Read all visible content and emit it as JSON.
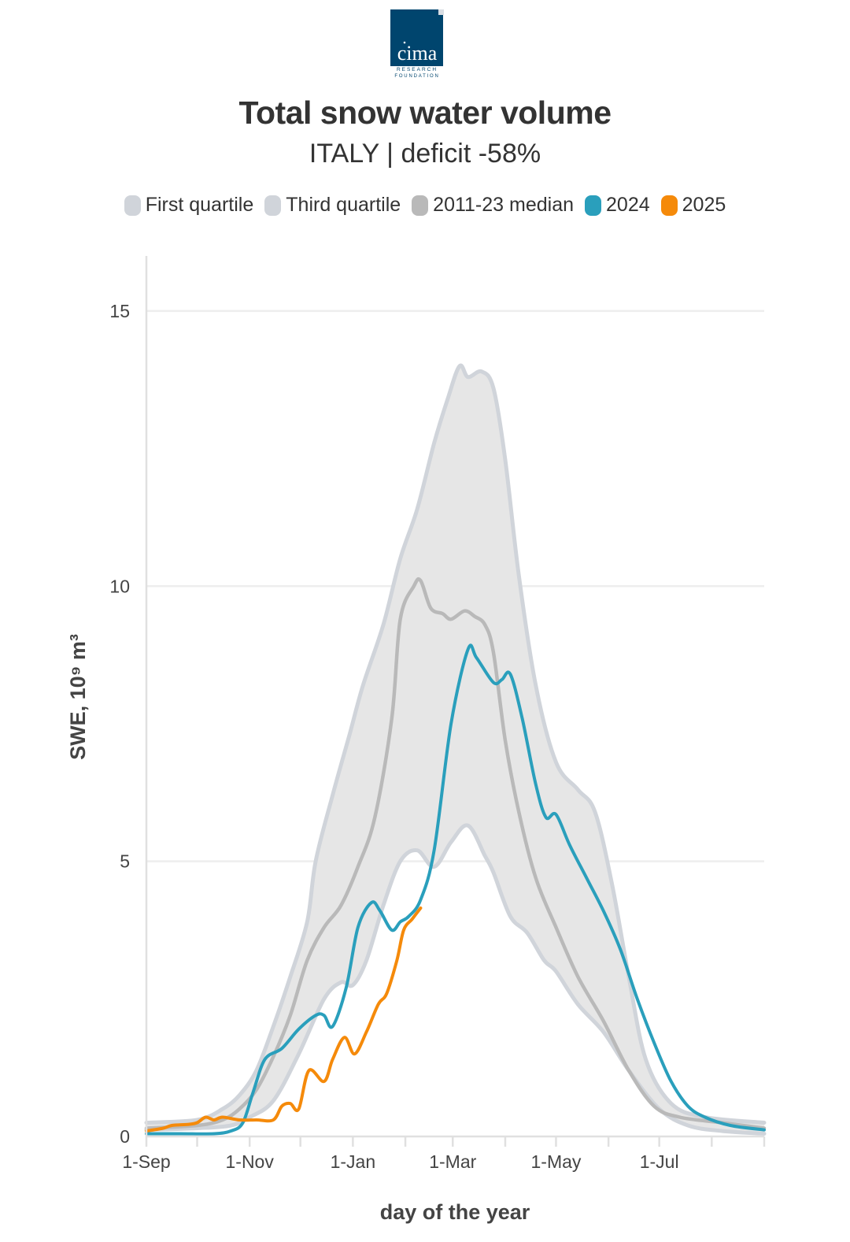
{
  "logo": {
    "name": "cima",
    "line1": "RESEARCH",
    "line2": "FOUNDATION",
    "bg_color": "#00456e"
  },
  "header": {
    "title": "Total snow water volume",
    "subtitle": "ITALY | deficit -58%"
  },
  "colors": {
    "quartile_fill": "#e6e6e6",
    "quartile_line": "#d0d4da",
    "median": "#b9b9b9",
    "y2024": "#2a9fbc",
    "y2025": "#f58a0a",
    "grid": "#eeeeee",
    "axis": "#e0e0e0"
  },
  "legend": [
    {
      "label": "First quartile",
      "color": "#d0d4da"
    },
    {
      "label": "Third quartile",
      "color": "#d0d4da"
    },
    {
      "label": "2011-23 median",
      "color": "#b9b9b9"
    },
    {
      "label": "2024",
      "color": "#2a9fbc"
    },
    {
      "label": "2025",
      "color": "#f58a0a"
    }
  ],
  "chart_data": {
    "type": "line",
    "title": "Total snow water volume",
    "subtitle": "ITALY | deficit -58%",
    "xlabel": "day of the year",
    "ylabel": "SWE, 10⁹ m³",
    "xlim": [
      0,
      365
    ],
    "ylim": [
      0,
      16
    ],
    "x_ticks": [
      {
        "day": 0,
        "label": "1-Sep"
      },
      {
        "day": 61,
        "label": "1-Nov"
      },
      {
        "day": 122,
        "label": "1-Jan"
      },
      {
        "day": 181,
        "label": "1-Mar"
      },
      {
        "day": 242,
        "label": "1-May"
      },
      {
        "day": 303,
        "label": "1-Jul"
      }
    ],
    "x_minor_ticks": [
      0,
      30,
      61,
      91,
      122,
      153,
      181,
      212,
      242,
      273,
      303,
      334,
      365
    ],
    "y_ticks": [
      0,
      5,
      10,
      15
    ],
    "legend_position": "top",
    "grid": true,
    "series": [
      {
        "name": "First quartile",
        "points": [
          [
            0,
            0.12
          ],
          [
            30,
            0.15
          ],
          [
            50,
            0.2
          ],
          [
            61,
            0.35
          ],
          [
            75,
            0.65
          ],
          [
            90,
            1.5
          ],
          [
            105,
            2.5
          ],
          [
            115,
            2.8
          ],
          [
            122,
            2.75
          ],
          [
            130,
            3.2
          ],
          [
            140,
            4.2
          ],
          [
            150,
            5.0
          ],
          [
            160,
            5.2
          ],
          [
            170,
            4.9
          ],
          [
            180,
            5.35
          ],
          [
            190,
            5.65
          ],
          [
            200,
            5.1
          ],
          [
            205,
            4.8
          ],
          [
            215,
            4.0
          ],
          [
            225,
            3.7
          ],
          [
            235,
            3.2
          ],
          [
            242,
            3.0
          ],
          [
            255,
            2.4
          ],
          [
            270,
            1.9
          ],
          [
            285,
            1.2
          ],
          [
            303,
            0.5
          ],
          [
            320,
            0.2
          ],
          [
            340,
            0.1
          ],
          [
            365,
            0.05
          ]
        ]
      },
      {
        "name": "Third quartile",
        "points": [
          [
            0,
            0.25
          ],
          [
            30,
            0.3
          ],
          [
            45,
            0.5
          ],
          [
            55,
            0.75
          ],
          [
            65,
            1.2
          ],
          [
            75,
            2.0
          ],
          [
            85,
            2.9
          ],
          [
            95,
            3.9
          ],
          [
            100,
            5.0
          ],
          [
            110,
            6.2
          ],
          [
            120,
            7.3
          ],
          [
            128,
            8.2
          ],
          [
            140,
            9.3
          ],
          [
            150,
            10.5
          ],
          [
            160,
            11.4
          ],
          [
            170,
            12.6
          ],
          [
            178,
            13.4
          ],
          [
            185,
            14.0
          ],
          [
            190,
            13.8
          ],
          [
            198,
            13.9
          ],
          [
            205,
            13.6
          ],
          [
            212,
            12.3
          ],
          [
            220,
            10.2
          ],
          [
            230,
            8.2
          ],
          [
            242,
            6.8
          ],
          [
            255,
            6.3
          ],
          [
            265,
            5.9
          ],
          [
            275,
            4.6
          ],
          [
            285,
            2.9
          ],
          [
            295,
            1.4
          ],
          [
            310,
            0.6
          ],
          [
            330,
            0.35
          ],
          [
            365,
            0.25
          ]
        ]
      },
      {
        "name": "2011-23 median",
        "points": [
          [
            0,
            0.15
          ],
          [
            30,
            0.2
          ],
          [
            45,
            0.3
          ],
          [
            55,
            0.5
          ],
          [
            65,
            0.85
          ],
          [
            75,
            1.45
          ],
          [
            85,
            2.2
          ],
          [
            95,
            3.2
          ],
          [
            105,
            3.8
          ],
          [
            115,
            4.2
          ],
          [
            125,
            4.9
          ],
          [
            135,
            5.8
          ],
          [
            145,
            7.6
          ],
          [
            150,
            9.4
          ],
          [
            158,
            10.0
          ],
          [
            162,
            10.1
          ],
          [
            168,
            9.6
          ],
          [
            175,
            9.5
          ],
          [
            180,
            9.4
          ],
          [
            188,
            9.55
          ],
          [
            194,
            9.45
          ],
          [
            200,
            9.3
          ],
          [
            205,
            8.8
          ],
          [
            212,
            7.2
          ],
          [
            220,
            5.9
          ],
          [
            230,
            4.7
          ],
          [
            242,
            3.8
          ],
          [
            255,
            2.9
          ],
          [
            270,
            2.1
          ],
          [
            285,
            1.2
          ],
          [
            300,
            0.55
          ],
          [
            315,
            0.35
          ],
          [
            340,
            0.25
          ],
          [
            365,
            0.15
          ]
        ]
      },
      {
        "name": "2024",
        "points": [
          [
            0,
            0.05
          ],
          [
            20,
            0.05
          ],
          [
            40,
            0.05
          ],
          [
            50,
            0.1
          ],
          [
            57,
            0.25
          ],
          [
            63,
            0.8
          ],
          [
            70,
            1.4
          ],
          [
            80,
            1.6
          ],
          [
            90,
            1.95
          ],
          [
            100,
            2.2
          ],
          [
            105,
            2.2
          ],
          [
            110,
            2.0
          ],
          [
            118,
            2.7
          ],
          [
            125,
            3.8
          ],
          [
            133,
            4.25
          ],
          [
            138,
            4.1
          ],
          [
            145,
            3.75
          ],
          [
            150,
            3.9
          ],
          [
            155,
            4.0
          ],
          [
            162,
            4.3
          ],
          [
            170,
            5.2
          ],
          [
            180,
            7.5
          ],
          [
            190,
            8.85
          ],
          [
            195,
            8.7
          ],
          [
            205,
            8.25
          ],
          [
            210,
            8.3
          ],
          [
            215,
            8.4
          ],
          [
            222,
            7.6
          ],
          [
            230,
            6.4
          ],
          [
            236,
            5.8
          ],
          [
            242,
            5.85
          ],
          [
            250,
            5.3
          ],
          [
            260,
            4.7
          ],
          [
            270,
            4.1
          ],
          [
            280,
            3.4
          ],
          [
            290,
            2.5
          ],
          [
            300,
            1.7
          ],
          [
            310,
            1.0
          ],
          [
            320,
            0.55
          ],
          [
            330,
            0.35
          ],
          [
            345,
            0.2
          ],
          [
            365,
            0.12
          ]
        ]
      },
      {
        "name": "2025",
        "points": [
          [
            0,
            0.1
          ],
          [
            10,
            0.15
          ],
          [
            15,
            0.2
          ],
          [
            25,
            0.22
          ],
          [
            30,
            0.25
          ],
          [
            35,
            0.35
          ],
          [
            40,
            0.3
          ],
          [
            45,
            0.35
          ],
          [
            55,
            0.3
          ],
          [
            65,
            0.3
          ],
          [
            75,
            0.3
          ],
          [
            80,
            0.55
          ],
          [
            85,
            0.6
          ],
          [
            90,
            0.5
          ],
          [
            96,
            1.2
          ],
          [
            105,
            1.0
          ],
          [
            110,
            1.4
          ],
          [
            117,
            1.8
          ],
          [
            123,
            1.5
          ],
          [
            130,
            1.9
          ],
          [
            137,
            2.4
          ],
          [
            142,
            2.6
          ],
          [
            148,
            3.2
          ],
          [
            152,
            3.75
          ],
          [
            157,
            3.95
          ],
          [
            162,
            4.15
          ]
        ]
      }
    ]
  }
}
